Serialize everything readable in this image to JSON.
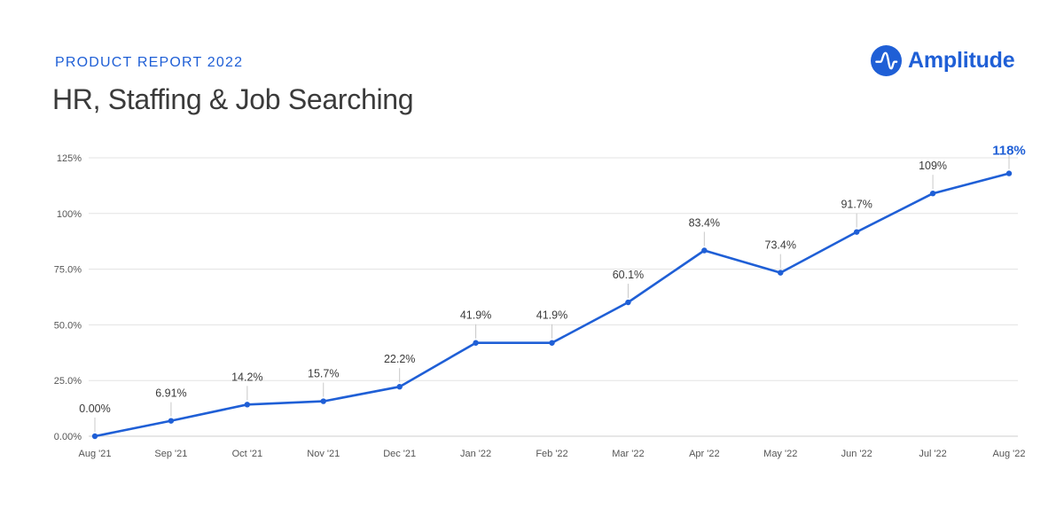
{
  "header": {
    "eyebrow": "PRODUCT REPORT 2022",
    "title": "HR, Staffing & Job Searching"
  },
  "brand": {
    "name": "Amplitude",
    "icon": "amplitude-logo-icon",
    "color": "#1f5fd6"
  },
  "chart_data": {
    "type": "line",
    "title": "",
    "xlabel": "",
    "ylabel": "",
    "categories": [
      "Aug '21",
      "Sep '21",
      "Oct '21",
      "Nov '21",
      "Dec '21",
      "Jan '22",
      "Feb '22",
      "Mar '22",
      "Apr '22",
      "May '22",
      "Jun '22",
      "Jul '22",
      "Aug '22"
    ],
    "series": [
      {
        "values": [
          0.0,
          6.91,
          14.2,
          15.7,
          22.2,
          41.9,
          41.9,
          60.1,
          83.4,
          73.4,
          91.7,
          109,
          118
        ],
        "labels": [
          "0.00%",
          "6.91%",
          "14.2%",
          "15.7%",
          "22.2%",
          "41.9%",
          "41.9%",
          "60.1%",
          "83.4%",
          "73.4%",
          "91.7%",
          "109%",
          "118%"
        ],
        "color": "#1f5fd6"
      }
    ],
    "ylim": [
      0,
      125
    ],
    "yticks": [
      0,
      25,
      50,
      75,
      100,
      125
    ],
    "ytick_labels": [
      "0.00%",
      "25.0%",
      "50.0%",
      "75.0%",
      "100%",
      "125%"
    ],
    "grid": true,
    "highlight_last_label": true,
    "highlight_color": "#1f5fd6"
  }
}
